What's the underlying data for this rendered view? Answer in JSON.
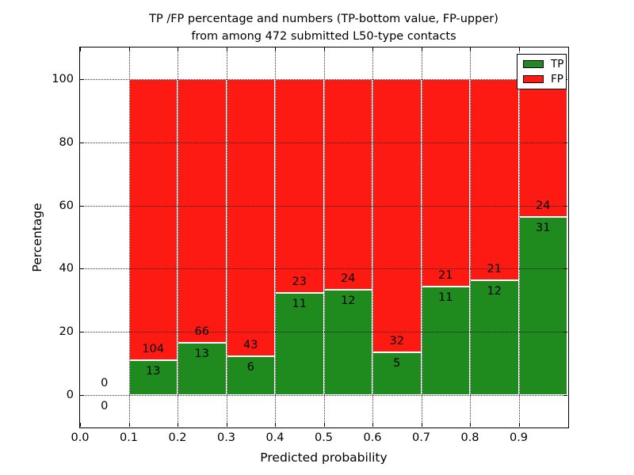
{
  "title": {
    "line1": "TP /FP percentage and numbers (TP-bottom value, FP-upper)",
    "line2": "from among 472 submitted L50-type contacts"
  },
  "chart_data": {
    "type": "bar",
    "stacked": true,
    "title": "TP /FP percentage and numbers (TP-bottom value, FP-upper) from among 472 submitted L50-type contacts",
    "xlabel": "Predicted probability",
    "ylabel": "Percentage",
    "xlim": [
      0.0,
      1.0
    ],
    "ylim": [
      -10,
      110
    ],
    "x_ticks": [
      {
        "v": 0.0,
        "label": "0.0"
      },
      {
        "v": 0.1,
        "label": "0.1"
      },
      {
        "v": 0.2,
        "label": "0.2"
      },
      {
        "v": 0.3,
        "label": "0.3"
      },
      {
        "v": 0.4,
        "label": "0.4"
      },
      {
        "v": 0.5,
        "label": "0.5"
      },
      {
        "v": 0.6,
        "label": "0.6"
      },
      {
        "v": 0.7,
        "label": "0.7"
      },
      {
        "v": 0.8,
        "label": "0.8"
      },
      {
        "v": 0.9,
        "label": "0.9"
      }
    ],
    "y_ticks": [
      0,
      20,
      40,
      60,
      80,
      100
    ],
    "grid": true,
    "grid_style": "dotted-black-above-bars",
    "total_contacts": 472,
    "colors": {
      "tp": "#1f8b1f",
      "fp": "#fc1a13",
      "bar_edge": "#ffffff"
    },
    "legend_position": "upper right",
    "legend_entries": [
      {
        "label": "TP",
        "color": "#1f8b1f"
      },
      {
        "label": "FP",
        "color": "#fc1a13"
      }
    ],
    "bins": [
      {
        "x0": 0.0,
        "x1": 0.1,
        "tp": 0,
        "fp": 0,
        "tp_pct": 0.0,
        "fp_top_pct": 0
      },
      {
        "x0": 0.1,
        "x1": 0.2,
        "tp": 13,
        "fp": 104,
        "tp_pct": 11.11,
        "fp_top_pct": 100
      },
      {
        "x0": 0.2,
        "x1": 0.3,
        "tp": 13,
        "fp": 66,
        "tp_pct": 16.46,
        "fp_top_pct": 100
      },
      {
        "x0": 0.3,
        "x1": 0.4,
        "tp": 6,
        "fp": 43,
        "tp_pct": 12.24,
        "fp_top_pct": 100
      },
      {
        "x0": 0.4,
        "x1": 0.5,
        "tp": 11,
        "fp": 23,
        "tp_pct": 32.35,
        "fp_top_pct": 100
      },
      {
        "x0": 0.5,
        "x1": 0.6,
        "tp": 12,
        "fp": 24,
        "tp_pct": 33.33,
        "fp_top_pct": 100
      },
      {
        "x0": 0.6,
        "x1": 0.7,
        "tp": 5,
        "fp": 32,
        "tp_pct": 13.51,
        "fp_top_pct": 100
      },
      {
        "x0": 0.7,
        "x1": 0.8,
        "tp": 11,
        "fp": 21,
        "tp_pct": 34.38,
        "fp_top_pct": 100
      },
      {
        "x0": 0.8,
        "x1": 0.9,
        "tp": 12,
        "fp": 21,
        "tp_pct": 36.36,
        "fp_top_pct": 100
      },
      {
        "x0": 0.9,
        "x1": 1.0,
        "tp": 31,
        "fp": 24,
        "tp_pct": 56.36,
        "fp_top_pct": 100
      }
    ]
  }
}
